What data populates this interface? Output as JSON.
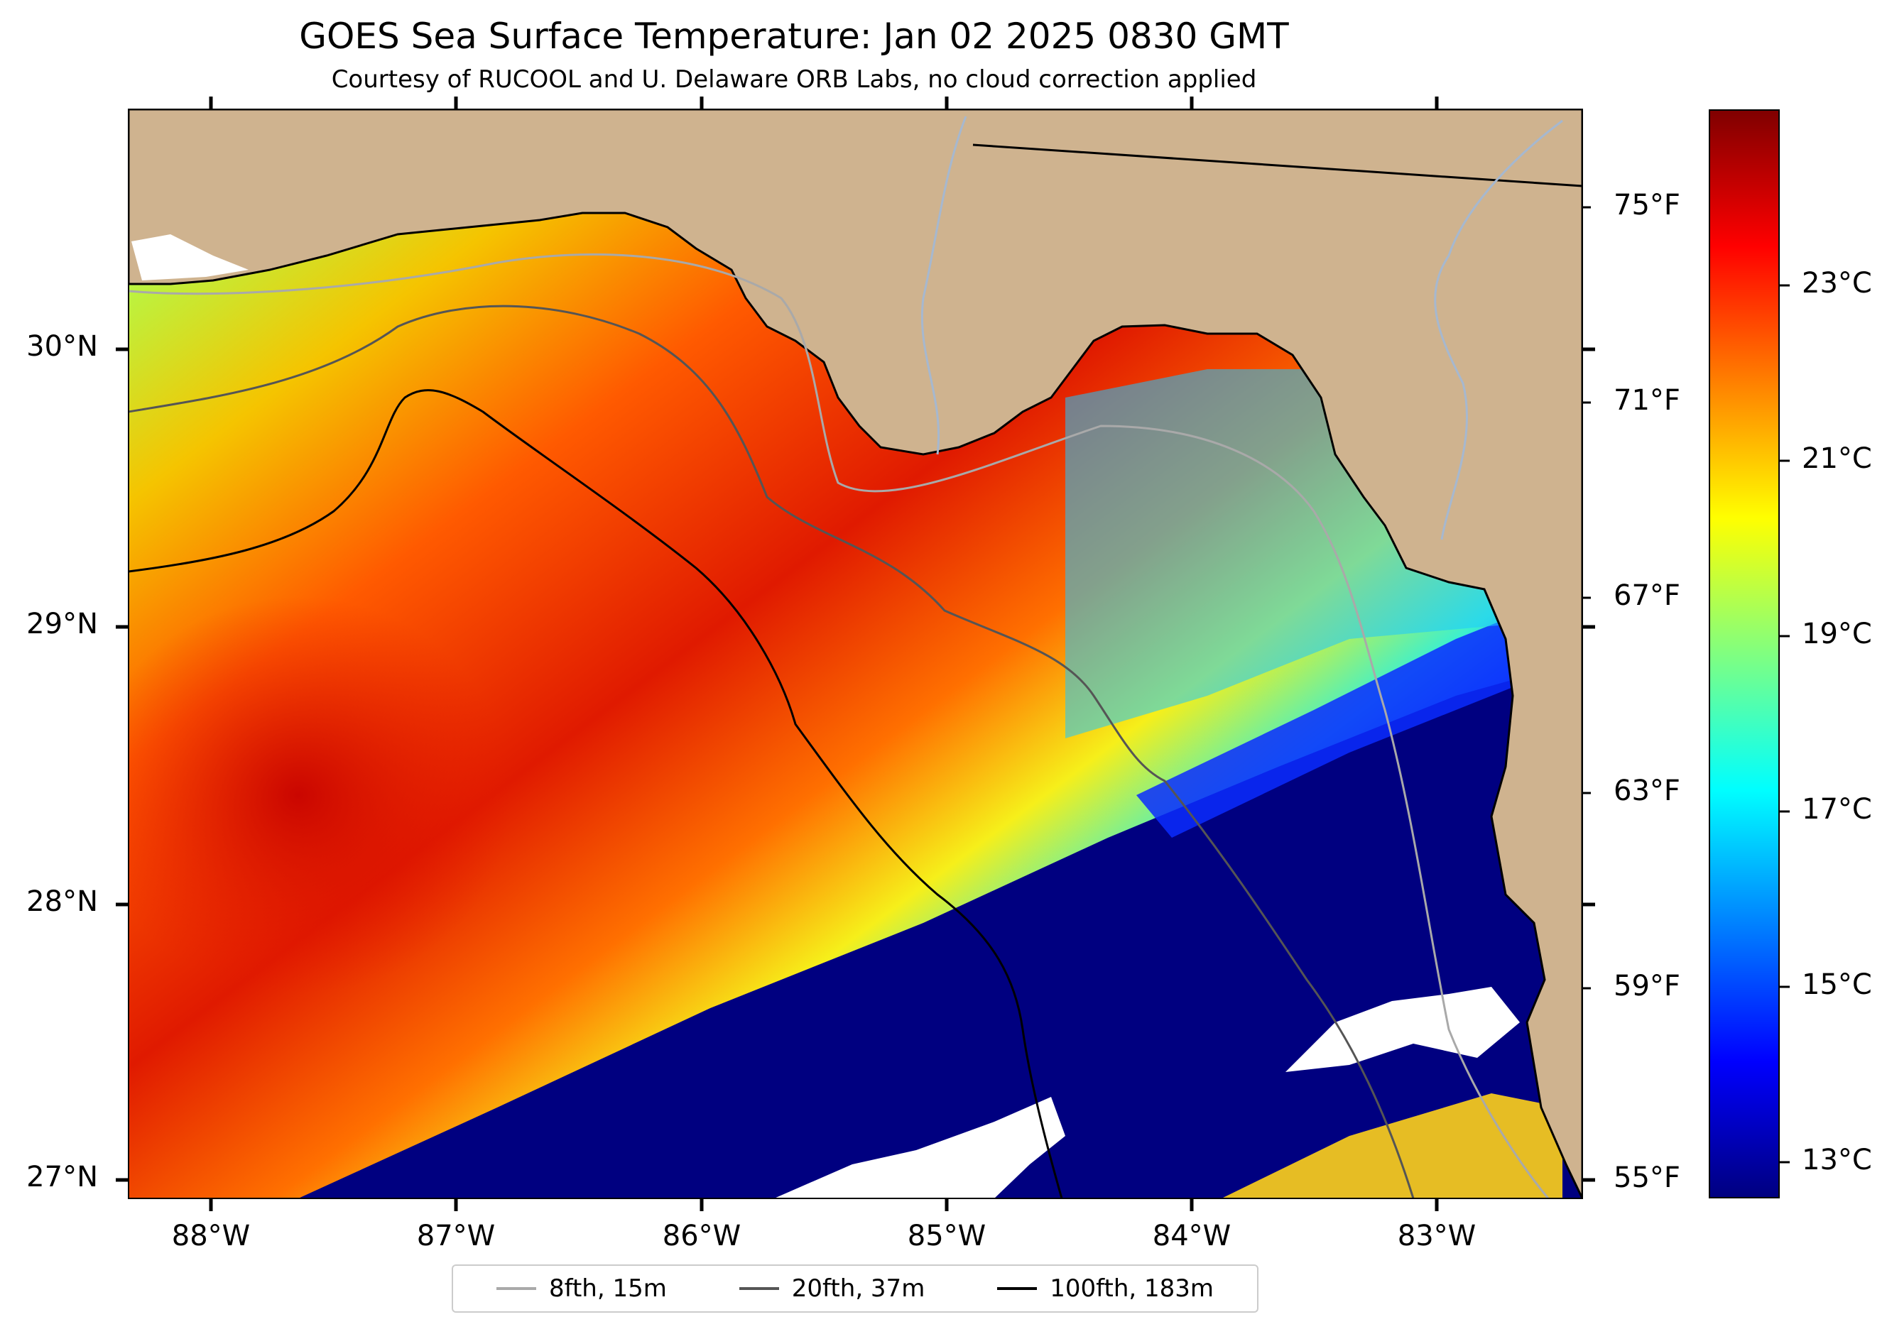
{
  "title": "GOES Sea Surface Temperature: Jan 02 2025 0830 GMT",
  "subtitle": "Courtesy of RUCOOL and U. Delaware ORB Labs, no cloud correction applied",
  "map": {
    "lat_labels": [
      "30°N",
      "29°N",
      "28°N",
      "27°N"
    ],
    "lon_labels": [
      "88°W",
      "87°W",
      "86°W",
      "85°W",
      "84°W",
      "83°W"
    ],
    "fahrenheit_labels": [
      "75°F",
      "71°F",
      "67°F",
      "63°F",
      "59°F",
      "55°F"
    ],
    "colors": {
      "land": "#cfb38f",
      "cloud": "#ffffff",
      "river": "#a6b8cf",
      "warm": "#e11f00",
      "cold": "#000080"
    }
  },
  "colorbar": {
    "labels": [
      "23°C",
      "21°C",
      "19°C",
      "17°C",
      "15°C",
      "13°C"
    ],
    "colormap": "jet",
    "stops": [
      "#000080",
      "#0000ff",
      "#0080ff",
      "#00ffff",
      "#80ff80",
      "#ffff00",
      "#ff8000",
      "#ff0000",
      "#800000"
    ]
  },
  "legend": {
    "items": [
      {
        "label": "8fth, 15m",
        "color": "#a9a9a9"
      },
      {
        "label": "20fth, 37m",
        "color": "#555555"
      },
      {
        "label": "100fth, 183m",
        "color": "#000000"
      }
    ]
  }
}
